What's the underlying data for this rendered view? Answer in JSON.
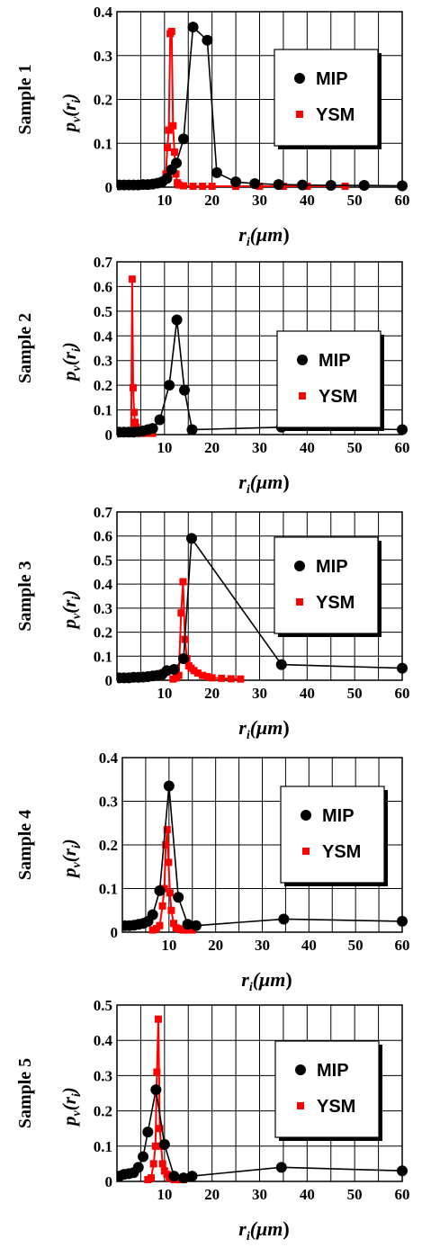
{
  "chart_data": [
    {
      "type": "line",
      "side_label": "Sample 1",
      "ylabel": "p_v(r_i)",
      "xlabel": "r_i(μm)",
      "xlim": [
        0,
        60
      ],
      "ylim": [
        0,
        0.4
      ],
      "xticks": [
        10,
        20,
        30,
        40,
        50,
        60
      ],
      "yticks": [
        0,
        0.1,
        0.2,
        0.3,
        0.4
      ],
      "ytick_labels": [
        "0",
        "0.1",
        "0.2",
        "0.3",
        "0.4"
      ],
      "grid": true,
      "legend": "right",
      "series": [
        {
          "name": "MIP",
          "color": "#000000",
          "marker": "circle",
          "x": [
            0.5,
            1.5,
            2.5,
            3.5,
            4.5,
            5.5,
            6.5,
            7.5,
            8.5,
            9.5,
            10.5,
            11.5,
            12.5,
            14,
            16,
            19,
            21,
            25,
            29,
            34,
            39,
            45,
            52,
            60
          ],
          "y": [
            0.005,
            0.005,
            0.005,
            0.005,
            0.005,
            0.006,
            0.006,
            0.007,
            0.009,
            0.012,
            0.02,
            0.04,
            0.055,
            0.11,
            0.365,
            0.335,
            0.033,
            0.012,
            0.008,
            0.006,
            0.005,
            0.004,
            0.004,
            0.003
          ]
        },
        {
          "name": "YSM",
          "color": "#ff0000",
          "marker": "square",
          "x": [
            10.3,
            10.6,
            10.9,
            11.2,
            11.5,
            11.8,
            12.1,
            12.4,
            12.7,
            13,
            14,
            16,
            18,
            20,
            25,
            30,
            35,
            40,
            48
          ],
          "y": [
            0.03,
            0.09,
            0.13,
            0.35,
            0.355,
            0.14,
            0.08,
            0.03,
            0.01,
            0.005,
            0.003,
            0.002,
            0.002,
            0.002,
            0.002,
            0.002,
            0.002,
            0.002,
            0.002
          ]
        }
      ]
    },
    {
      "type": "line",
      "side_label": "Sample 2",
      "ylabel": "p_v(r_i)",
      "xlabel": "r_i(μm)",
      "xlim": [
        0,
        60
      ],
      "ylim": [
        0,
        0.7
      ],
      "xticks": [
        10,
        20,
        30,
        40,
        50,
        60
      ],
      "yticks": [
        0,
        0.1,
        0.2,
        0.3,
        0.4,
        0.5,
        0.6,
        0.7
      ],
      "ytick_labels": [
        "0",
        "0.1",
        "0.2",
        "0.3",
        "0.4",
        "0.5",
        "0.6",
        "0.7"
      ],
      "grid": true,
      "legend": "right",
      "series": [
        {
          "name": "MIP",
          "color": "#000000",
          "marker": "circle",
          "x": [
            0.5,
            1.5,
            2.5,
            3.5,
            4.5,
            5.5,
            6.5,
            7.5,
            9,
            11,
            12.6,
            14.2,
            15.8,
            34.6,
            60
          ],
          "y": [
            0.01,
            0.01,
            0.01,
            0.01,
            0.012,
            0.015,
            0.02,
            0.025,
            0.06,
            0.2,
            0.465,
            0.18,
            0.02,
            0.03,
            0.02
          ]
        },
        {
          "name": "YSM",
          "color": "#ff0000",
          "marker": "square",
          "x": [
            3.0,
            3.2,
            3.4,
            3.6,
            3.8,
            4.0,
            4.3,
            4.6,
            5,
            6,
            7.5
          ],
          "y": [
            0.01,
            0.63,
            0.19,
            0.09,
            0.05,
            0.03,
            0.02,
            0.01,
            0.005,
            0.005,
            0.005
          ]
        }
      ]
    },
    {
      "type": "line",
      "side_label": "Sample 3",
      "ylabel": "p_v(r_i)",
      "xlabel": "r_i(μm)",
      "xlim": [
        0,
        60
      ],
      "ylim": [
        0,
        0.7
      ],
      "xticks": [
        10,
        20,
        30,
        40,
        50,
        60
      ],
      "yticks": [
        0,
        0.1,
        0.2,
        0.3,
        0.4,
        0.5,
        0.6,
        0.7
      ],
      "ytick_labels": [
        "0",
        "0.1",
        "0.2",
        "0.3",
        "0.4",
        "0.5",
        "0.6",
        "0.7"
      ],
      "grid": true,
      "legend": "right",
      "series": [
        {
          "name": "MIP",
          "color": "#000000",
          "marker": "circle",
          "x": [
            0.5,
            1.5,
            2.5,
            3.5,
            4.5,
            5.5,
            6.5,
            7.5,
            8.5,
            9.5,
            10.5,
            12,
            14,
            15.7,
            34.6,
            60
          ],
          "y": [
            0.01,
            0.01,
            0.01,
            0.012,
            0.012,
            0.013,
            0.015,
            0.018,
            0.02,
            0.025,
            0.04,
            0.045,
            0.09,
            0.59,
            0.065,
            0.05
          ]
        },
        {
          "name": "YSM",
          "color": "#ff0000",
          "marker": "square",
          "x": [
            11.8,
            12.5,
            13.0,
            13.5,
            13.9,
            14.3,
            14.7,
            15.1,
            15.6,
            16.2,
            17,
            18,
            19,
            20,
            22,
            24,
            26
          ],
          "y": [
            0.005,
            0.01,
            0.02,
            0.28,
            0.41,
            0.17,
            0.09,
            0.06,
            0.05,
            0.04,
            0.03,
            0.02,
            0.015,
            0.01,
            0.008,
            0.006,
            0.005
          ]
        }
      ]
    },
    {
      "type": "line",
      "side_label": "Sample 4",
      "ylabel": "p_v(r_i)",
      "xlabel": "r_i(μm)",
      "xlim": [
        0,
        60
      ],
      "ylim": [
        0,
        0.4
      ],
      "xticks": [
        10,
        20,
        30,
        40,
        50,
        60
      ],
      "yticks": [
        0,
        0.1,
        0.2,
        0.3,
        0.4
      ],
      "ytick_labels": [
        "0",
        "0.1",
        "0.2",
        "0.3",
        "0.4"
      ],
      "grid": true,
      "legend": "right",
      "series": [
        {
          "name": "MIP",
          "color": "#000000",
          "marker": "circle",
          "x": [
            0.5,
            1.5,
            2.5,
            3.5,
            4.5,
            5.5,
            6.5,
            8,
            10,
            12,
            14,
            15.8,
            34.6,
            60
          ],
          "y": [
            0.015,
            0.015,
            0.016,
            0.018,
            0.02,
            0.025,
            0.04,
            0.095,
            0.335,
            0.08,
            0.018,
            0.015,
            0.03,
            0.025
          ]
        },
        {
          "name": "YSM",
          "color": "#ff0000",
          "marker": "square",
          "x": [
            6.5,
            7.3,
            8.0,
            8.6,
            9.0,
            9.3,
            9.6,
            9.9,
            10.2,
            10.5,
            11,
            11.5,
            12,
            12.5,
            13,
            14,
            15
          ],
          "y": [
            0.005,
            0.008,
            0.015,
            0.06,
            0.1,
            0.2,
            0.235,
            0.16,
            0.09,
            0.05,
            0.02,
            0.01,
            0.008,
            0.006,
            0.005,
            0.005,
            0.005
          ]
        }
      ]
    },
    {
      "type": "line",
      "side_label": "Sample 5",
      "ylabel": "p_v(r_i)",
      "xlabel": "r_i(μm)",
      "xlim": [
        0,
        60
      ],
      "ylim": [
        0,
        0.5
      ],
      "xticks": [
        10,
        20,
        30,
        40,
        50,
        60
      ],
      "yticks": [
        0,
        0.1,
        0.2,
        0.3,
        0.4,
        0.5
      ],
      "ytick_labels": [
        "0",
        "0.1",
        "0.2",
        "0.3",
        "0.4",
        "0.5"
      ],
      "grid": true,
      "legend": "right",
      "series": [
        {
          "name": "MIP",
          "color": "#000000",
          "marker": "circle",
          "x": [
            0.5,
            1.5,
            2.5,
            3.5,
            4.5,
            5.5,
            6.5,
            8.2,
            10,
            12,
            14,
            15.8,
            34.6,
            60
          ],
          "y": [
            0.015,
            0.02,
            0.022,
            0.025,
            0.04,
            0.07,
            0.14,
            0.26,
            0.105,
            0.015,
            0.01,
            0.015,
            0.04,
            0.03
          ]
        },
        {
          "name": "YSM",
          "color": "#ff0000",
          "marker": "square",
          "x": [
            6.5,
            7.2,
            7.7,
            8.1,
            8.4,
            8.7,
            9.0,
            9.3,
            9.6,
            10,
            10.5,
            11,
            12,
            13,
            14
          ],
          "y": [
            0.005,
            0.01,
            0.05,
            0.1,
            0.31,
            0.46,
            0.15,
            0.1,
            0.05,
            0.03,
            0.02,
            0.01,
            0.005,
            0.005,
            0.005
          ]
        }
      ]
    }
  ]
}
